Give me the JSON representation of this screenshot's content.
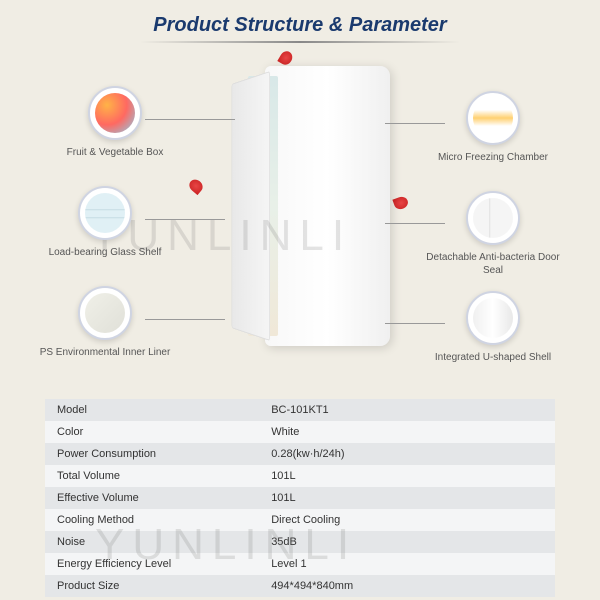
{
  "title": "Product Structure & Parameter",
  "watermark": "YUNLINLI",
  "callouts": {
    "c1": "Fruit & Vegetable Box",
    "c2": "Load-bearing Glass Shelf",
    "c3": "PS Environmental Inner Liner",
    "c4": "Micro Freezing Chamber",
    "c5": "Detachable Anti-bacteria Door Seal",
    "c6": "Integrated U-shaped Shell"
  },
  "specs": [
    {
      "k": "Model",
      "v": "BC-101KT1"
    },
    {
      "k": "Color",
      "v": "White"
    },
    {
      "k": "Power Consumption",
      "v": "0.28(kw·h/24h)"
    },
    {
      "k": "Total Volume",
      "v": "101L"
    },
    {
      "k": "Effective Volume",
      "v": "101L"
    },
    {
      "k": "Cooling Method",
      "v": "Direct Cooling"
    },
    {
      "k": "Noise",
      "v": "35dB"
    },
    {
      "k": "Energy Efficiency Level",
      "v": "Level 1"
    },
    {
      "k": "Product Size",
      "v": "494*494*840mm"
    }
  ],
  "colors": {
    "background": "#f0ede4",
    "title": "#1a3a6e",
    "row_odd": "#e4e6e8",
    "row_even": "#f4f5f6",
    "text": "#333333",
    "label": "#555555",
    "petal": "#e84545"
  }
}
